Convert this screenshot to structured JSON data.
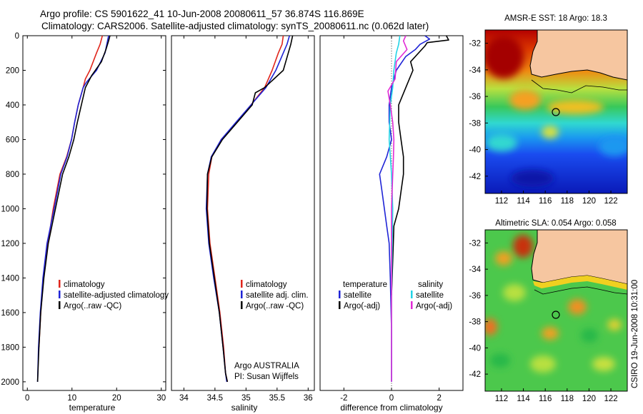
{
  "header": {
    "title_line1": "Argo profile: CS 5901622_41 10-Jun-2008 20080611_57 36.874S 116.869E",
    "title_line2": "Climatology: CARS2006. Satellite-adjusted climatology: synTS_20080611.nc (0.062d later)"
  },
  "colors": {
    "climatology": "#e0261c",
    "satellite": "#1f24d6",
    "argo": "#000000",
    "salinity_sat": "#22d3e6",
    "salinity_argo": "#e22bd6",
    "land": "#f6c6a0"
  },
  "chart_data": [
    {
      "type": "line",
      "panel": "temperature",
      "xlabel": "temperature",
      "xlim": [
        -1,
        31
      ],
      "xticks": [
        "0",
        "10",
        "20",
        "30"
      ],
      "ylim": [
        0,
        2050
      ],
      "yticks": [
        "0",
        "200",
        "400",
        "600",
        "800",
        "1000",
        "1200",
        "1400",
        "1600",
        "1800",
        "2000"
      ],
      "series": [
        {
          "name": "climatology",
          "color_key": "climatology",
          "x": [
            16.8,
            16.3,
            15.5,
            14.0,
            13.0,
            12.5,
            11.4,
            10.6,
            9.9,
            8.8,
            7.3,
            5.8,
            4.6,
            3.6,
            3.0,
            2.6
          ],
          "y": [
            0,
            50,
            100,
            200,
            250,
            300,
            400,
            500,
            600,
            700,
            800,
            1000,
            1200,
            1400,
            1600,
            1800
          ]
        },
        {
          "name": "satellite-adjusted climatology",
          "color_key": "satellite",
          "x": [
            18.2,
            17.8,
            17.4,
            15.5,
            13.2,
            12.5,
            11.4,
            10.6,
            9.9,
            8.9,
            7.5,
            6.0,
            4.4,
            3.5,
            2.9,
            2.5,
            2.3
          ],
          "y": [
            0,
            50,
            100,
            200,
            270,
            300,
            400,
            500,
            600,
            700,
            800,
            1000,
            1200,
            1400,
            1600,
            1800,
            2000
          ]
        },
        {
          "name": "Argo(..raw -QC)",
          "color_key": "argo",
          "x": [
            18.5,
            18.2,
            17.6,
            16.6,
            14.4,
            13.0,
            12.1,
            11.2,
            10.4,
            9.3,
            7.9,
            6.3,
            4.7,
            3.7,
            3.0,
            2.6,
            2.3
          ],
          "y": [
            0,
            30,
            80,
            150,
            230,
            300,
            400,
            500,
            600,
            700,
            800,
            1000,
            1200,
            1400,
            1600,
            1800,
            2000
          ]
        }
      ],
      "legend": {
        "position": "lower-right",
        "labels": [
          "climatology",
          "satellite-adjusted climatology",
          "Argo(..raw -QC)"
        ]
      }
    },
    {
      "type": "line",
      "panel": "salinity",
      "xlabel": "salinity",
      "xlim": [
        33.8,
        36.1
      ],
      "xticks": [
        "34",
        "34.5",
        "35",
        "35.5",
        "36"
      ],
      "ylim": [
        0,
        2050
      ],
      "series": [
        {
          "name": "climatology",
          "color_key": "climatology",
          "x": [
            35.6,
            35.58,
            35.52,
            35.42,
            35.3,
            35.08,
            34.85,
            34.6,
            34.45,
            34.4,
            34.38,
            34.42,
            34.5,
            34.58,
            34.64,
            34.67,
            34.7
          ],
          "y": [
            0,
            50,
            100,
            200,
            300,
            400,
            500,
            600,
            700,
            800,
            1000,
            1200,
            1400,
            1600,
            1800,
            1950,
            2000
          ]
        },
        {
          "name": "satellite adj. clim.",
          "color_key": "satellite",
          "x": [
            35.7,
            35.66,
            35.6,
            35.48,
            35.32,
            35.08,
            34.84,
            34.6,
            34.44,
            34.38,
            34.36,
            34.4,
            34.48,
            34.57,
            34.63,
            34.67,
            34.69
          ],
          "y": [
            0,
            50,
            100,
            200,
            300,
            400,
            500,
            600,
            700,
            800,
            1000,
            1200,
            1400,
            1600,
            1800,
            1950,
            2000
          ]
        },
        {
          "name": "Argo(..raw -QC)",
          "color_key": "argo",
          "x": [
            35.75,
            35.72,
            35.68,
            35.6,
            35.3,
            35.15,
            35.1,
            34.86,
            34.62,
            34.45,
            34.38,
            34.37,
            34.41,
            34.49,
            34.57,
            34.63,
            34.67,
            34.7
          ],
          "y": [
            0,
            50,
            100,
            200,
            300,
            330,
            400,
            500,
            600,
            700,
            800,
            1000,
            1200,
            1400,
            1600,
            1800,
            1950,
            2000
          ]
        }
      ],
      "legend": {
        "position": "lower-right",
        "labels": [
          "climatology",
          "satellite adj. clim.",
          "Argo(..raw -QC)"
        ]
      },
      "annotation": [
        "Argo AUSTRALIA",
        "PI: Susan Wijffels"
      ]
    },
    {
      "type": "line",
      "panel": "difference",
      "xlabel": "difference from climatology",
      "xlim": [
        -3,
        3
      ],
      "xticks": [
        "-2",
        "0",
        "2"
      ],
      "ylim": [
        0,
        2050
      ],
      "series": [
        {
          "name": "temperature satellite",
          "color_key": "satellite",
          "x": [
            1.4,
            1.6,
            1.2,
            1.0,
            0.6,
            0.2,
            0.0,
            -0.1,
            -0.1,
            0.0,
            -0.2,
            -0.5,
            -0.4,
            -0.3,
            -0.2,
            -0.1,
            -0.05,
            0.0,
            0.0
          ],
          "y": [
            0,
            20,
            50,
            80,
            120,
            200,
            300,
            400,
            500,
            600,
            700,
            800,
            900,
            1000,
            1100,
            1200,
            1400,
            1700,
            2000
          ]
        },
        {
          "name": "temperature Argo(-adj)",
          "color_key": "argo",
          "x": [
            2.3,
            2.4,
            1.5,
            1.4,
            0.8,
            0.9,
            0.6,
            0.3,
            0.3,
            0.4,
            0.5,
            0.5,
            0.4,
            0.3,
            0.1,
            0.05,
            0.0
          ],
          "y": [
            0,
            25,
            40,
            60,
            150,
            200,
            300,
            400,
            500,
            600,
            700,
            800,
            900,
            1000,
            1100,
            1300,
            1500
          ]
        },
        {
          "name": "salinity satellite",
          "color_key": "salinity_sat",
          "x": [
            0.35,
            0.3,
            0.2,
            0.1,
            0.05,
            -0.05,
            -0.1,
            0.0,
            0.05,
            0.0,
            0.0
          ],
          "y": [
            0,
            50,
            100,
            200,
            300,
            400,
            600,
            800,
            1000,
            1500,
            2000
          ]
        },
        {
          "name": "salinity Argo(-adj)",
          "color_key": "salinity_argo",
          "x": [
            0.6,
            0.5,
            0.65,
            0.2,
            0.15,
            -0.15,
            -0.05,
            0.05,
            0.1,
            0.08,
            0.05,
            0.0,
            0.0,
            0.0
          ],
          "y": [
            0,
            30,
            80,
            150,
            250,
            320,
            400,
            500,
            600,
            700,
            800,
            1000,
            1500,
            2000
          ]
        }
      ],
      "legend": {
        "position": "lower",
        "col1_title": "temperature",
        "col2_title": "salinity",
        "labels": [
          "satellite",
          "Argo(-adj)",
          "satellite",
          "Argo(-adj)"
        ]
      }
    },
    {
      "type": "heatmap",
      "panel": "sst_map",
      "title": "AMSR-E SST: 18 Argo: 18.3",
      "xticks": [
        "112",
        "114",
        "116",
        "118",
        "120",
        "122"
      ],
      "yticks": [
        "-32",
        "-34",
        "-36",
        "-38",
        "-40",
        "-42"
      ],
      "xlim": [
        110.5,
        123.5
      ],
      "ylim": [
        -43.3,
        -31.0
      ],
      "argo_position": [
        116.869,
        -36.874
      ]
    },
    {
      "type": "heatmap",
      "panel": "sla_map",
      "title": "Altimetric SLA: 0.054 Argo: 0.058",
      "xticks": [
        "112",
        "114",
        "116",
        "118",
        "120",
        "122"
      ],
      "yticks": [
        "-32",
        "-34",
        "-36",
        "-38",
        "-40",
        "-42"
      ],
      "xlim": [
        110.5,
        123.5
      ],
      "ylim": [
        -43.3,
        -31.0
      ],
      "argo_position": [
        116.869,
        -36.874
      ]
    }
  ],
  "footer": {
    "stamp": "CSIRO 19-Jun-2008 10:31:00"
  }
}
